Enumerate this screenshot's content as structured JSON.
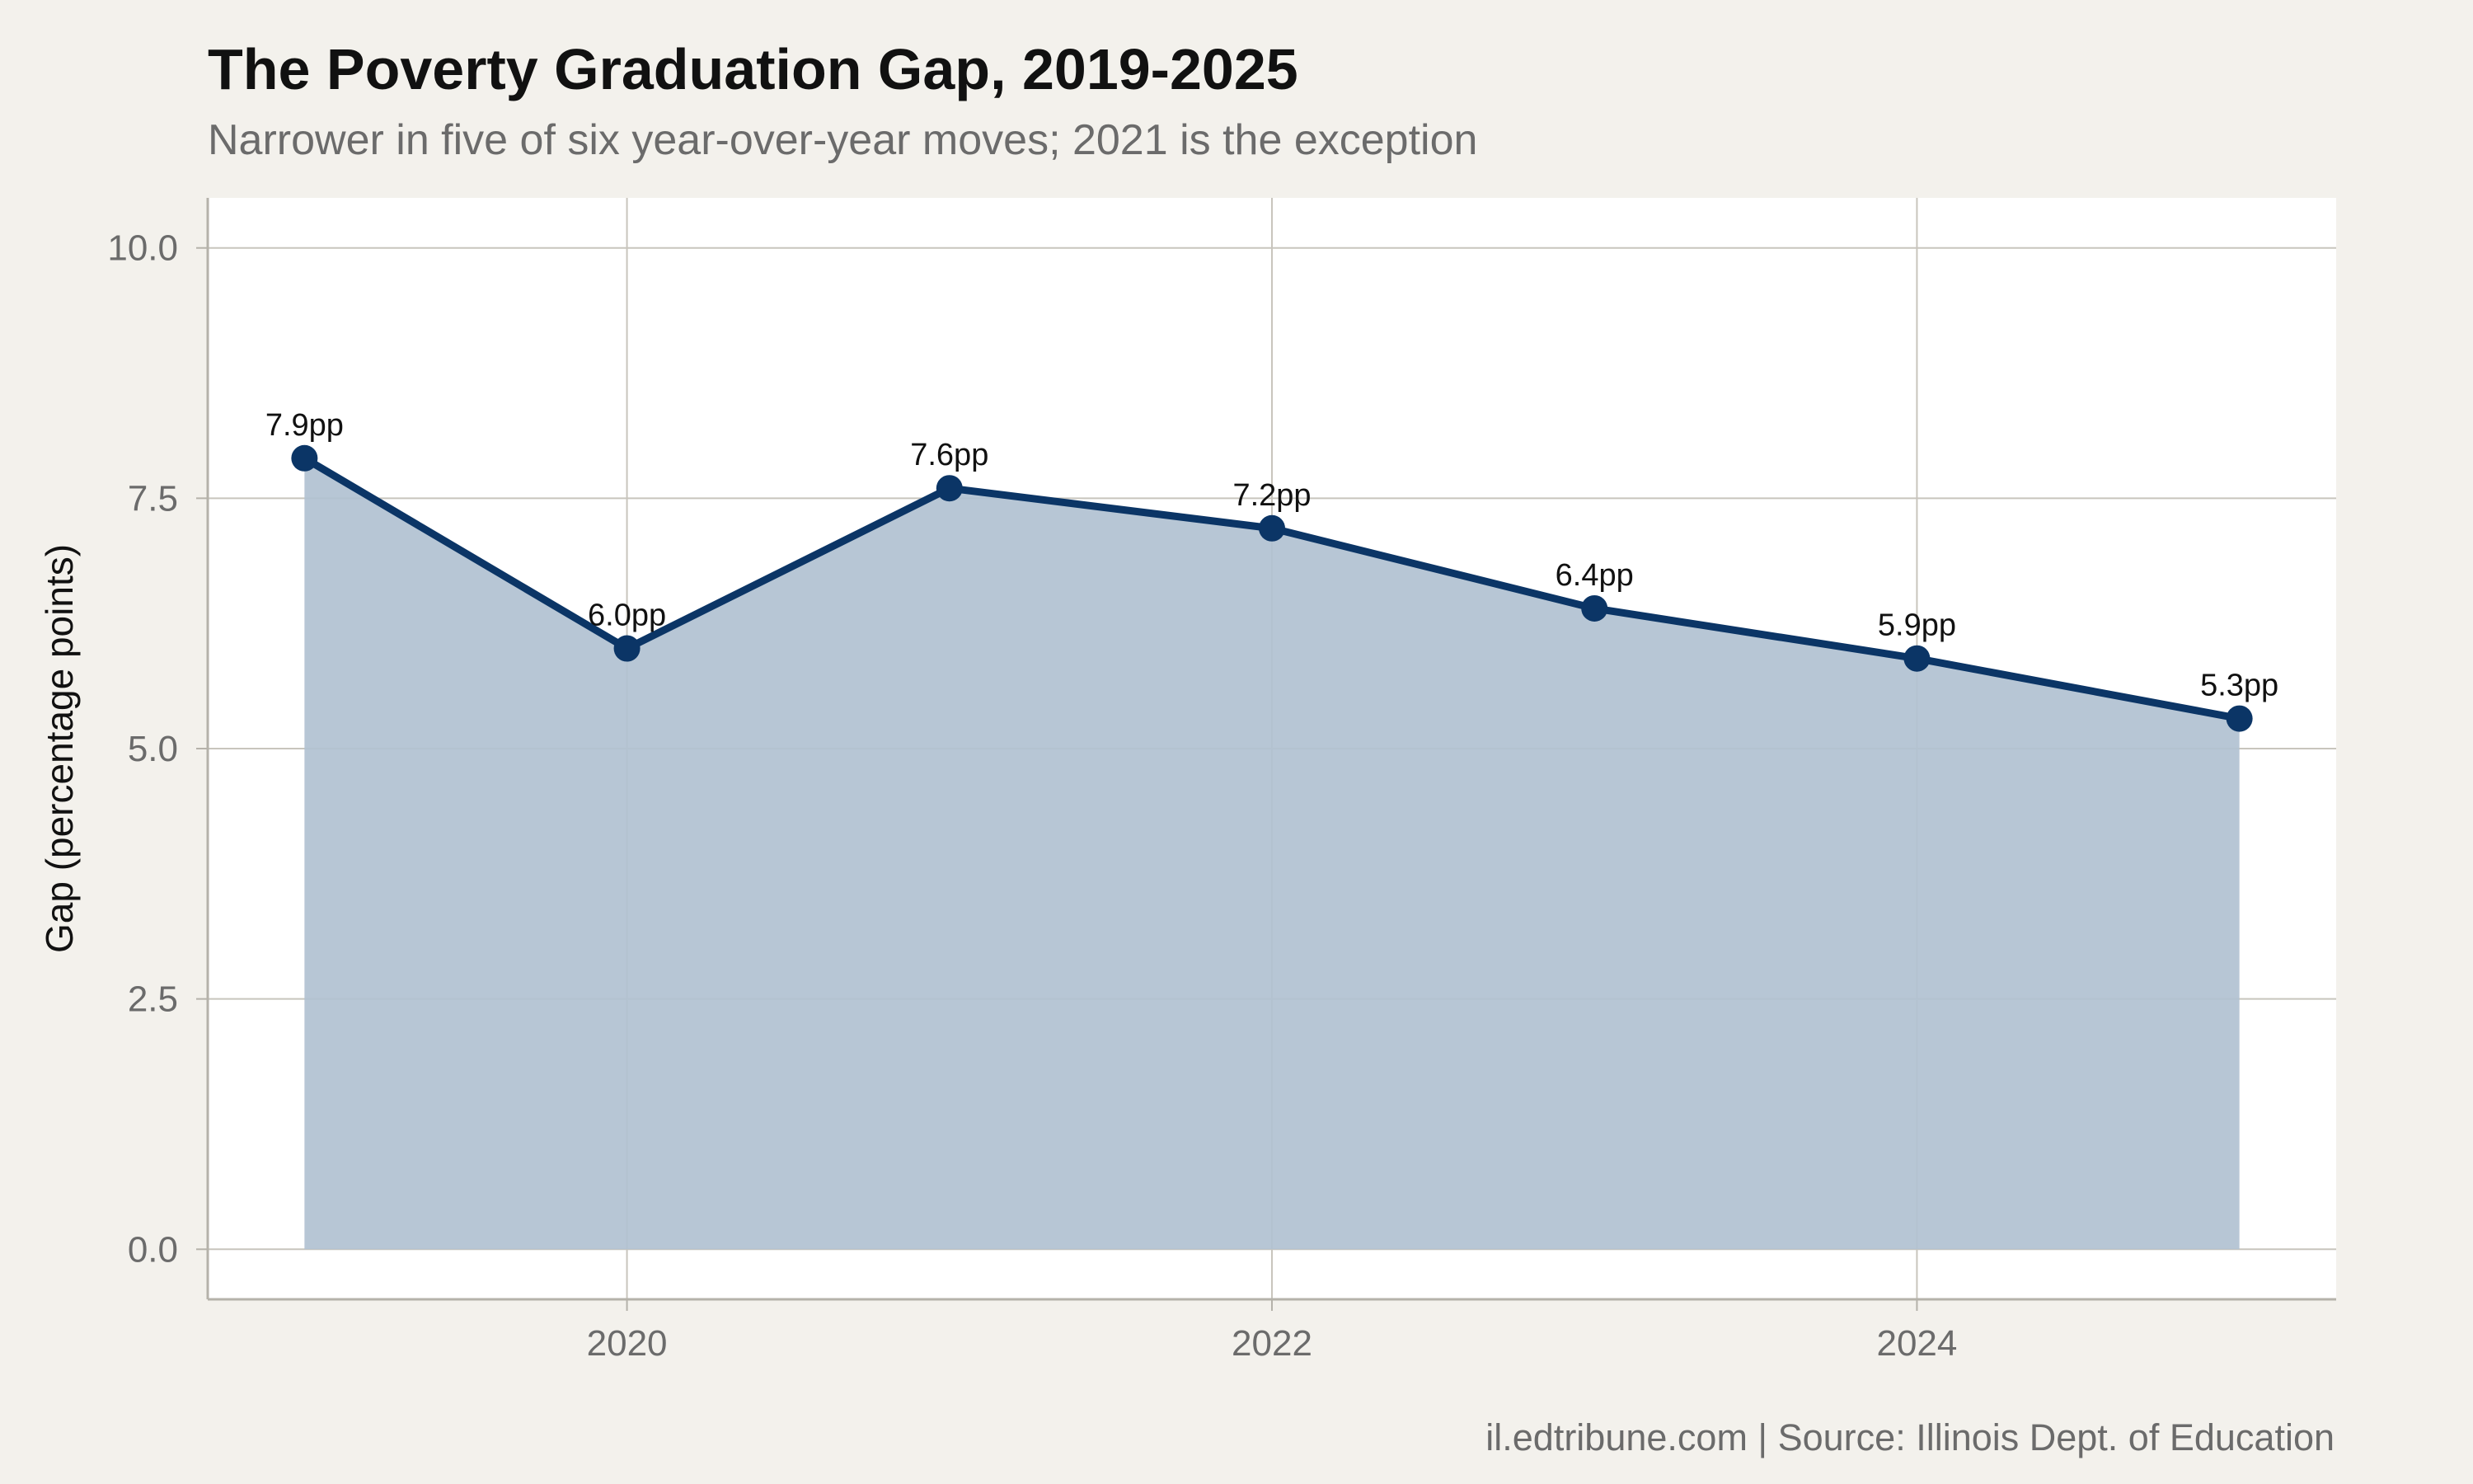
{
  "colors": {
    "page_background": "#f3f1ec",
    "panel_background": "#ffffff",
    "line": "#0b3566",
    "area_fill": "#b1c1d1",
    "grid": "#c8c5bd"
  },
  "chart_data": {
    "type": "area",
    "title": "The Poverty Graduation Gap, 2019-2025",
    "subtitle": "Narrower in five of six year-over-year moves; 2021 is the exception",
    "xlabel": "",
    "ylabel": "Gap (percentage points)",
    "x": [
      2019,
      2020,
      2021,
      2022,
      2023,
      2024,
      2025
    ],
    "series": [
      {
        "values": [
          7.9,
          6.0,
          7.6,
          7.2,
          6.4,
          5.9,
          5.3
        ],
        "labels": [
          "7.9pp",
          "6.0pp",
          "7.6pp",
          "7.2pp",
          "6.4pp",
          "5.9pp",
          "5.3pp"
        ]
      }
    ],
    "xlim": [
      2018.7,
      2025.3
    ],
    "ylim": [
      -0.5,
      10.5
    ],
    "x_ticks": [
      2020,
      2022,
      2024
    ],
    "x_tick_labels": [
      "2020",
      "2022",
      "2024"
    ],
    "y_ticks": [
      0,
      2.5,
      5,
      7.5,
      10
    ],
    "y_tick_labels": [
      "0.0",
      "2.5",
      "5.0",
      "7.5",
      "10.0"
    ],
    "grid": true,
    "legend": "none",
    "caption": "il.edtribune.com | Source: Illinois Dept. of Education"
  }
}
